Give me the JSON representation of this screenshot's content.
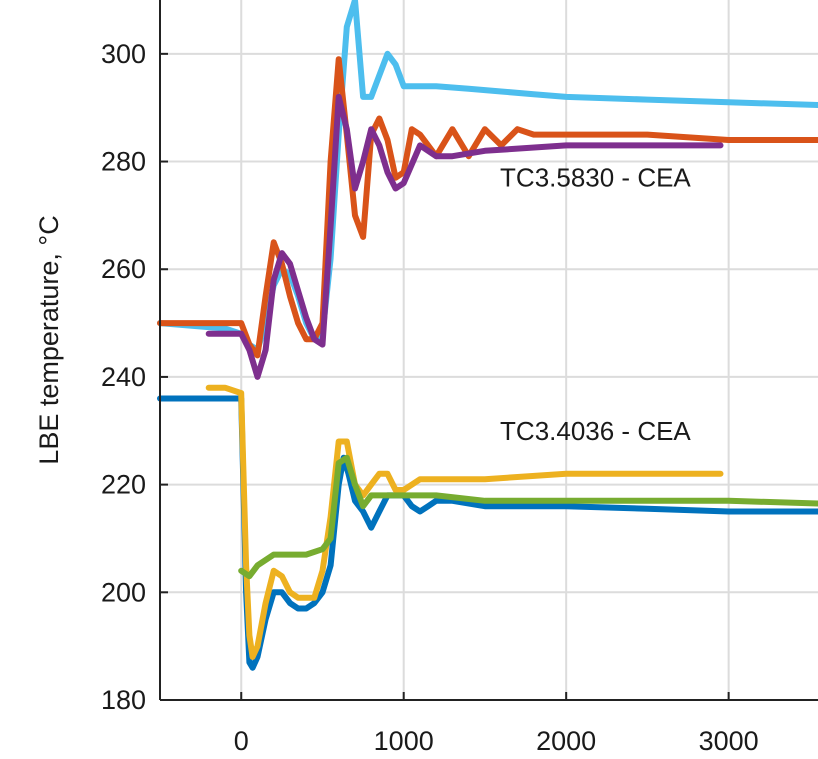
{
  "chart_data": {
    "type": "line",
    "title": "",
    "xlabel": "",
    "ylabel": "LBE temperature, °C",
    "xlim": [
      -500,
      3550
    ],
    "ylim": [
      180,
      310
    ],
    "xticks": [
      0,
      1000,
      2000,
      3000
    ],
    "yticks": [
      180,
      200,
      220,
      240,
      260,
      280,
      300
    ],
    "grid": true,
    "annotations": [
      {
        "text": "TC3.5830 - CEA",
        "x": 2180,
        "y": 277
      },
      {
        "text": "TC3.4036 - CEA",
        "x": 2180,
        "y": 230
      }
    ],
    "series": [
      {
        "color": "#4dbeee",
        "style": "dotted-then-solid",
        "x": [
          -500,
          -100,
          0,
          50,
          100,
          150,
          200,
          250,
          300,
          350,
          400,
          450,
          500,
          550,
          600,
          650,
          700,
          750,
          800,
          850,
          900,
          950,
          1000,
          1100,
          1200,
          1400,
          1600,
          1800,
          2000,
          2500,
          3000,
          3550
        ],
        "y": [
          250,
          249,
          248,
          246,
          245,
          250,
          257,
          260,
          259,
          255,
          250,
          247,
          248,
          262,
          285,
          305,
          310,
          292,
          292,
          296,
          300,
          298,
          294,
          294,
          294,
          293.5,
          293,
          292.5,
          292,
          291.5,
          291,
          290.5
        ]
      },
      {
        "color": "#d95319",
        "style": "solid",
        "x": [
          -500,
          -300,
          -200,
          -100,
          0,
          50,
          100,
          150,
          200,
          250,
          300,
          350,
          400,
          450,
          500,
          550,
          600,
          650,
          700,
          750,
          800,
          850,
          900,
          950,
          1000,
          1050,
          1100,
          1200,
          1300,
          1400,
          1500,
          1600,
          1700,
          1800,
          2000,
          2500,
          3000,
          3550
        ],
        "y": [
          250,
          250,
          250,
          250,
          250,
          246,
          244,
          255,
          265,
          261,
          255,
          250,
          247,
          247,
          250,
          280,
          299,
          285,
          270,
          266,
          285,
          288,
          284,
          277,
          278,
          286,
          285,
          281,
          286,
          281,
          286,
          283,
          286,
          285,
          285,
          285,
          284,
          284
        ]
      },
      {
        "color": "#7e2f8e",
        "style": "dotted-then-solid",
        "x": [
          -200,
          0,
          50,
          100,
          150,
          200,
          250,
          300,
          350,
          400,
          450,
          500,
          550,
          600,
          650,
          700,
          750,
          800,
          850,
          900,
          950,
          1000,
          1100,
          1200,
          1300,
          1500,
          2000,
          2500,
          2950
        ],
        "y": [
          248,
          248,
          245,
          240,
          245,
          258,
          263,
          261,
          256,
          251,
          247,
          246,
          268,
          292,
          286,
          275,
          280,
          286,
          283,
          278,
          275,
          276,
          283,
          281,
          281,
          282,
          283,
          283,
          283
        ]
      },
      {
        "color": "#0072bd",
        "style": "solid",
        "x": [
          -500,
          -300,
          -100,
          0,
          30,
          50,
          70,
          100,
          150,
          200,
          250,
          300,
          350,
          400,
          450,
          500,
          550,
          600,
          630,
          660,
          700,
          750,
          800,
          850,
          900,
          1000,
          1050,
          1100,
          1150,
          1200,
          1300,
          1500,
          2000,
          2500,
          3000,
          3550
        ],
        "y": [
          236,
          236,
          236,
          236,
          200,
          187,
          186,
          188,
          195,
          200,
          200,
          198,
          197,
          197,
          198,
          200,
          205,
          220,
          225,
          222,
          217,
          215,
          212,
          215,
          218,
          218,
          216,
          215,
          216,
          217,
          217,
          216,
          216,
          215.5,
          215,
          215
        ]
      },
      {
        "color": "#edb120",
        "style": "solid",
        "x": [
          -200,
          -100,
          0,
          30,
          50,
          70,
          100,
          150,
          200,
          250,
          300,
          350,
          400,
          450,
          500,
          550,
          600,
          650,
          700,
          750,
          800,
          850,
          900,
          950,
          1000,
          1100,
          1200,
          1300,
          1500,
          2000,
          2500,
          2950
        ],
        "y": [
          238,
          238,
          237,
          205,
          192,
          188,
          190,
          198,
          204,
          203,
          200,
          199,
          199,
          199,
          204,
          214,
          228,
          228,
          220,
          218,
          220,
          222,
          222,
          219,
          219,
          221,
          221,
          221,
          221,
          222,
          222,
          222
        ]
      },
      {
        "color": "#77ac30",
        "style": "solid",
        "x": [
          0,
          50,
          100,
          150,
          200,
          300,
          400,
          500,
          550,
          600,
          650,
          700,
          750,
          800,
          900,
          1000,
          1200,
          1500,
          2000,
          2500,
          3000,
          3550
        ],
        "y": [
          204,
          203,
          205,
          206,
          207,
          207,
          207,
          208,
          210,
          224,
          225,
          220,
          216,
          218,
          218,
          218,
          218,
          217,
          217,
          217,
          217,
          216.5
        ]
      }
    ]
  }
}
